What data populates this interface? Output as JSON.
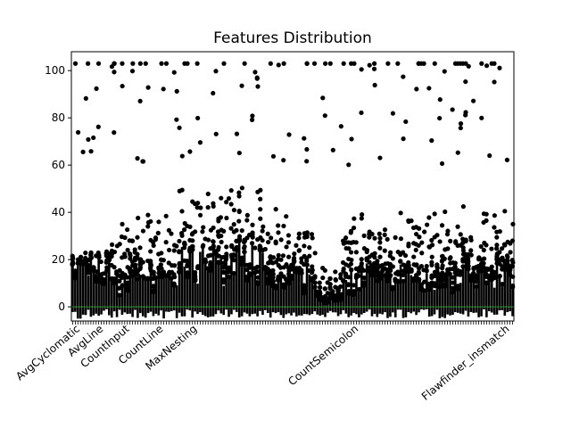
{
  "chart_data": {
    "type": "box",
    "title": "Features Distribution",
    "xlabel": "",
    "ylabel": "",
    "ylim": [
      -6,
      108
    ],
    "yticks": [
      0,
      20,
      40,
      60,
      80,
      100
    ],
    "grid": false,
    "legend": "none",
    "median_color": "#2ca02c",
    "flier_color": "#000000",
    "box_color": "#000000",
    "num_features": 170,
    "visible_xtick_labels": [
      "AvgCyclomatic",
      "AvgLine",
      "CountInput",
      "CountLine",
      "MaxNesting",
      "CountSemicolon",
      "Flawfinder_insmatch"
    ],
    "distribution_summary": {
      "median": 0,
      "typical_q3": 8,
      "max_outlier": 103
    }
  }
}
